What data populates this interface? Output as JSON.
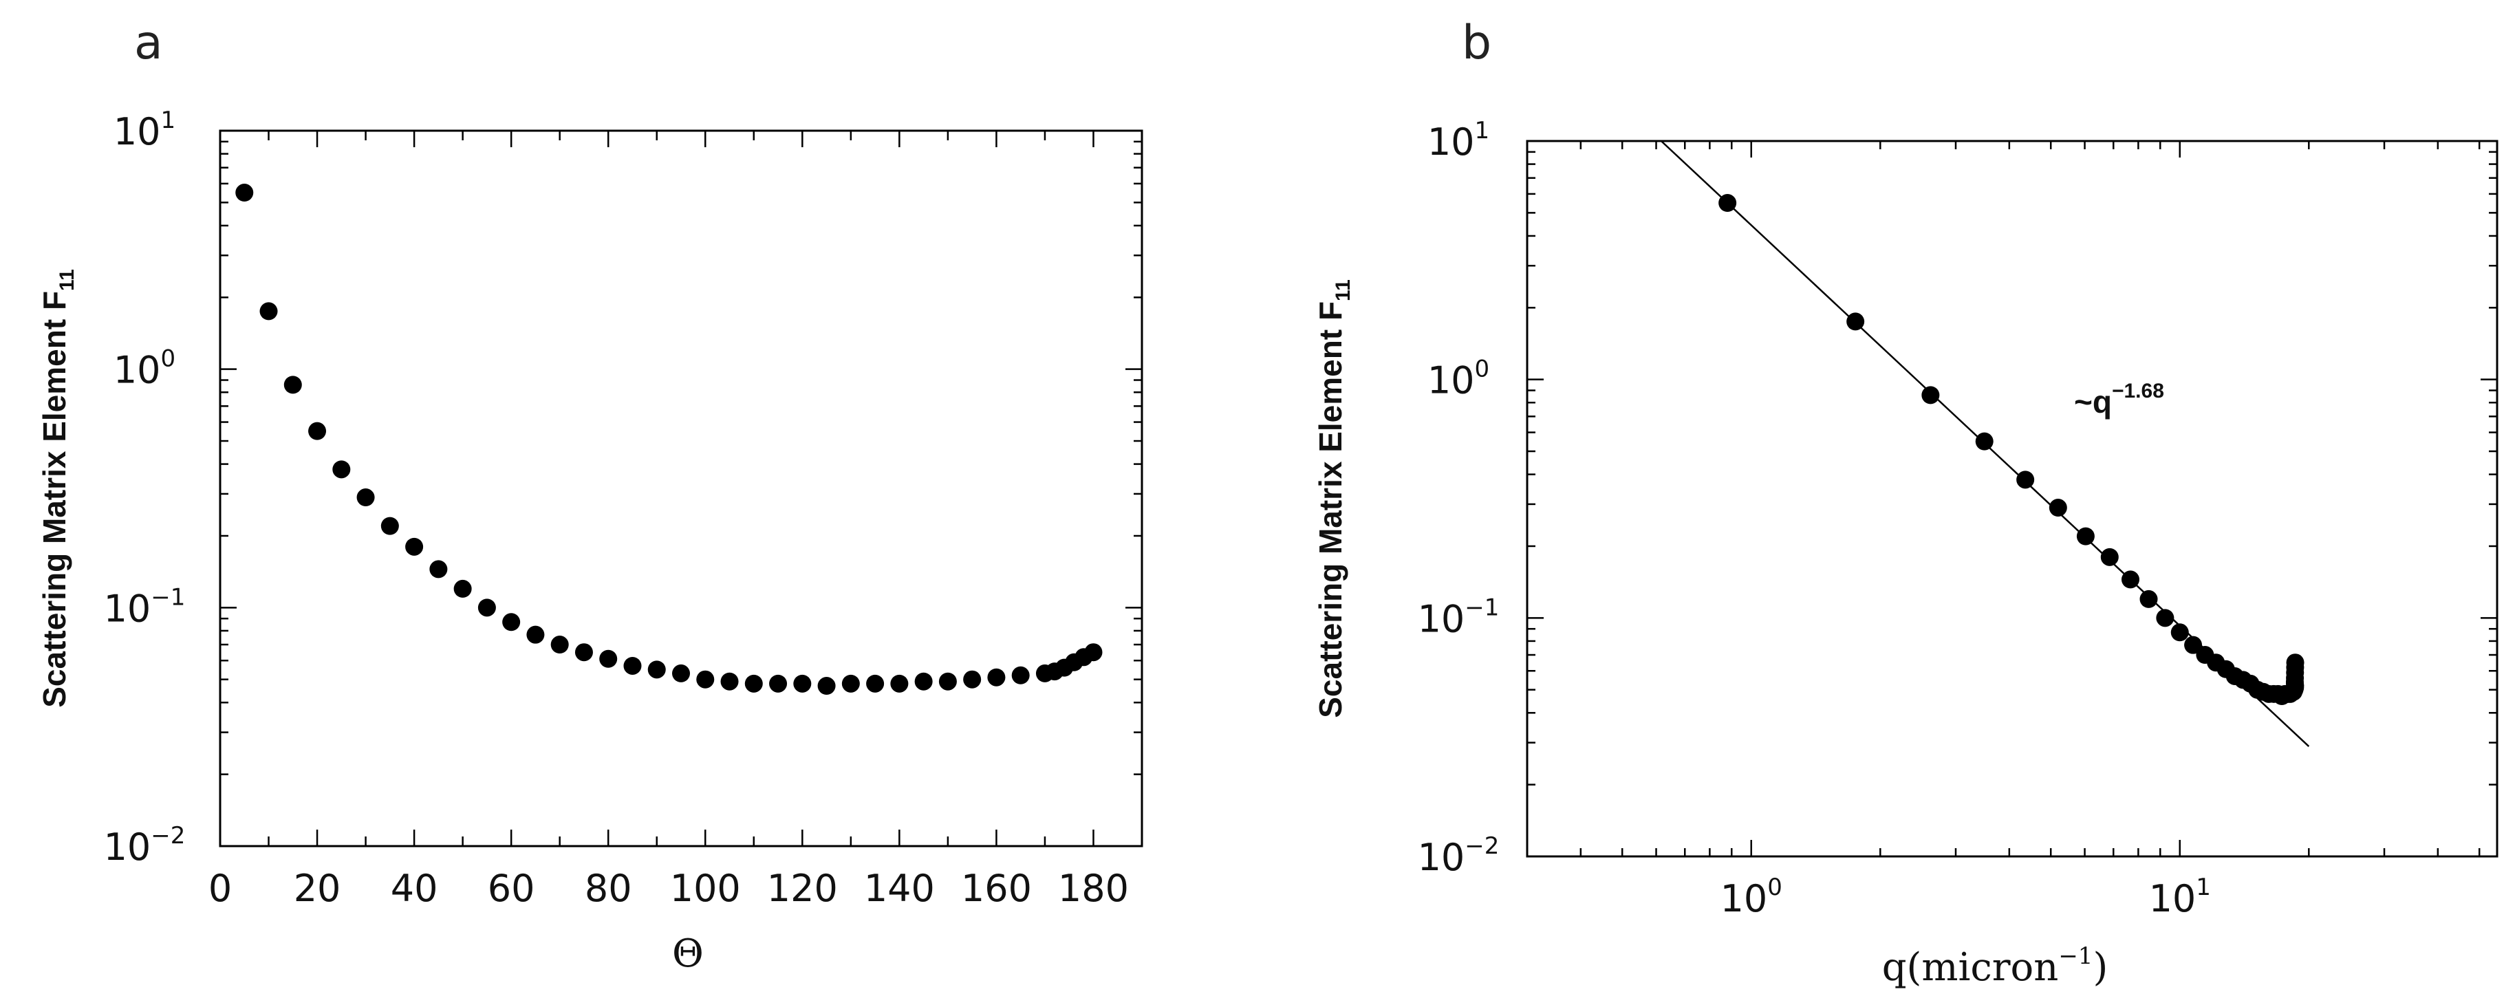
{
  "chart_data": [
    {
      "panel_label": "a",
      "type": "scatter",
      "x_scale": "linear",
      "y_scale": "log",
      "xlim": [
        0,
        190
      ],
      "ylim": [
        0.01,
        10
      ],
      "xticks": [
        0,
        20,
        40,
        60,
        80,
        100,
        120,
        140,
        160,
        180
      ],
      "xlabel": "Θ",
      "ylabel": {
        "main": "Scattering Matrix Element F",
        "sub": "11"
      },
      "yticks": [
        {
          "value": 10,
          "base": "10",
          "exp": "1"
        },
        {
          "value": 1,
          "base": "10",
          "exp": "0"
        },
        {
          "value": 0.1,
          "base": "10",
          "exp": "−1"
        },
        {
          "value": 0.01,
          "base": "10",
          "exp": "−2"
        }
      ],
      "marker_color": "#000000",
      "x": [
        5,
        10,
        15,
        20,
        25,
        30,
        35,
        40,
        45,
        50,
        55,
        60,
        65,
        70,
        75,
        80,
        85,
        90,
        95,
        100,
        105,
        110,
        115,
        120,
        125,
        130,
        135,
        140,
        145,
        150,
        155,
        160,
        165,
        170,
        172,
        174,
        176,
        178,
        180
      ],
      "y": [
        5.5,
        1.75,
        0.86,
        0.55,
        0.38,
        0.29,
        0.22,
        0.18,
        0.145,
        0.12,
        0.1,
        0.087,
        0.077,
        0.07,
        0.065,
        0.061,
        0.057,
        0.055,
        0.053,
        0.05,
        0.049,
        0.048,
        0.048,
        0.048,
        0.047,
        0.048,
        0.048,
        0.048,
        0.049,
        0.049,
        0.05,
        0.051,
        0.052,
        0.053,
        0.054,
        0.056,
        0.059,
        0.062,
        0.065
      ]
    },
    {
      "panel_label": "b",
      "type": "scatter",
      "x_scale": "log",
      "y_scale": "log",
      "xlim": [
        0.3,
        55
      ],
      "ylim": [
        0.01,
        10
      ],
      "xticks": [
        {
          "value": 1,
          "base": "10",
          "exp": "0"
        },
        {
          "value": 10,
          "base": "10",
          "exp": "1"
        }
      ],
      "yticks": [
        {
          "value": 10,
          "base": "10",
          "exp": "1"
        },
        {
          "value": 1,
          "base": "10",
          "exp": "0"
        },
        {
          "value": 0.1,
          "base": "10",
          "exp": "−1"
        },
        {
          "value": 0.01,
          "base": "10",
          "exp": "−2"
        }
      ],
      "xlabel": {
        "main": "q(micron",
        "exp": "−1",
        "close": ")"
      },
      "ylabel": {
        "main": "Scattering Matrix Element F",
        "sub": "11"
      },
      "annotation": {
        "base": "~q",
        "exp": "−1.68"
      },
      "fit_line": {
        "exponent": -1.68,
        "x_range": [
          0.6,
          20
        ],
        "anchor": [
          0.88,
          5.5
        ]
      },
      "marker_color": "#000000",
      "x": [
        0.88,
        1.75,
        2.62,
        3.5,
        4.36,
        5.2,
        6.03,
        6.86,
        7.67,
        8.46,
        9.24,
        10.0,
        10.74,
        11.45,
        12.14,
        12.81,
        13.44,
        14.05,
        14.62,
        15.16,
        15.66,
        16.13,
        16.56,
        16.95,
        17.3,
        17.6,
        17.87,
        18.1,
        18.28,
        18.42,
        18.51,
        18.57,
        18.58,
        18.55,
        18.55,
        18.56,
        18.57,
        18.58,
        18.59
      ],
      "y": [
        5.5,
        1.75,
        0.86,
        0.55,
        0.38,
        0.29,
        0.22,
        0.18,
        0.145,
        0.12,
        0.1,
        0.087,
        0.077,
        0.07,
        0.065,
        0.061,
        0.057,
        0.055,
        0.053,
        0.05,
        0.049,
        0.048,
        0.048,
        0.048,
        0.047,
        0.048,
        0.048,
        0.048,
        0.049,
        0.049,
        0.05,
        0.051,
        0.052,
        0.053,
        0.054,
        0.056,
        0.059,
        0.062,
        0.065
      ]
    }
  ]
}
